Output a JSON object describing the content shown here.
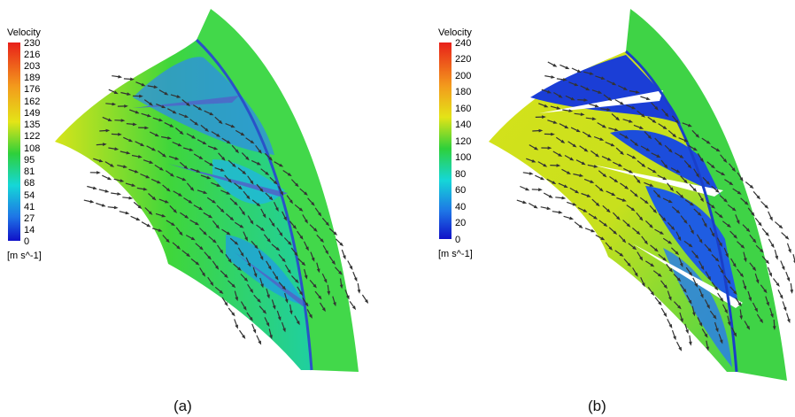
{
  "panels": [
    {
      "id": "a",
      "caption": "(a)",
      "legend": {
        "title": "Velocity",
        "unit": "[m s^-1]",
        "ticks": [
          "230",
          "216",
          "203",
          "189",
          "176",
          "162",
          "149",
          "135",
          "122",
          "108",
          "95",
          "81",
          "68",
          "54",
          "41",
          "27",
          "14",
          "0"
        ]
      }
    },
    {
      "id": "b",
      "caption": "(b)",
      "legend": {
        "title": "Velocity",
        "unit": "[m s^-1]",
        "ticks": [
          "240",
          "220",
          "200",
          "180",
          "160",
          "140",
          "120",
          "100",
          "80",
          "60",
          "40",
          "20",
          "0"
        ]
      }
    }
  ],
  "colors": {
    "high": "#e8201a",
    "orange": "#f39a1c",
    "yellow": "#e4e417",
    "green": "#2ed03a",
    "cyan": "#15d7d7",
    "blue": "#1e74e6",
    "low": "#1010c8",
    "arrow": "#333333"
  }
}
